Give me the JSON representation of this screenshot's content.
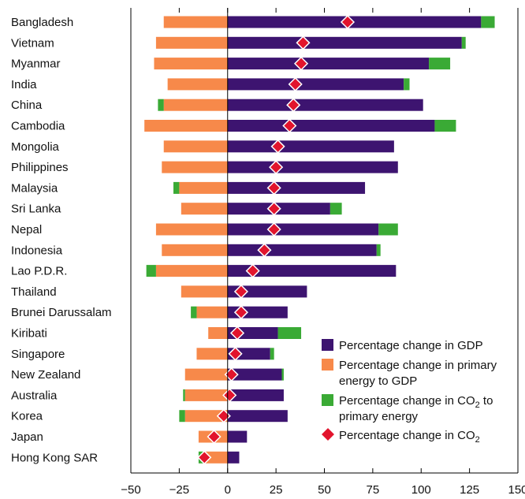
{
  "chart_data": {
    "type": "bar",
    "orientation": "horizontal",
    "stacked": true,
    "categories": [
      "Bangladesh",
      "Vietnam",
      "Myanmar",
      "India",
      "China",
      "Cambodia",
      "Mongolia",
      "Philippines",
      "Malaysia",
      "Sri Lanka",
      "Nepal",
      "Indonesia",
      "Lao P.D.R.",
      "Thailand",
      "Brunei Darussalam",
      "Kiribati",
      "Singapore",
      "New Zealand",
      "Australia",
      "Korea",
      "Japan",
      "Hong Kong SAR"
    ],
    "series": [
      {
        "name": "Percentage change in GDP",
        "color": "#3d1470",
        "values": [
          131,
          121,
          104,
          91,
          101,
          107,
          86,
          88,
          71,
          53,
          78,
          77,
          87,
          41,
          31,
          26,
          22,
          28,
          29,
          31,
          10,
          6
        ]
      },
      {
        "name": "Percentage change in primary energy to GDP",
        "color": "#f7894a",
        "values": [
          -33,
          -37,
          -38,
          -31,
          -33,
          -43,
          -33,
          -34,
          -25,
          -24,
          -37,
          -34,
          -37,
          -24,
          -16,
          -10,
          -16,
          -22,
          -22,
          -22,
          -15,
          -12
        ]
      },
      {
        "name": "Percentage change in CO2 to primary energy",
        "color": "#3aaa35",
        "values": [
          7,
          2,
          11,
          3,
          -3,
          11,
          0,
          0,
          -3,
          6,
          10,
          2,
          -5,
          0,
          -3,
          12,
          2,
          1,
          -1,
          -3,
          0,
          -3
        ]
      }
    ],
    "co2_change": {
      "name": "Percentage change in CO2",
      "color": "#e2142d",
      "values": [
        62,
        39,
        38,
        35,
        34,
        32,
        26,
        25,
        24,
        24,
        24,
        19,
        13,
        7,
        7,
        5,
        4,
        2,
        1,
        -2,
        -7,
        -12
      ]
    },
    "xlim": [
      -50,
      150
    ],
    "xticks": [
      "−50",
      "−25",
      "0",
      "25",
      "50",
      "75",
      "100",
      "125",
      "150"
    ],
    "xtick_values": [
      -50,
      -25,
      0,
      25,
      50,
      75,
      100,
      125,
      150
    ],
    "grid": false,
    "legend_position": "bottom-right"
  },
  "legend": {
    "gdp": "Percentage change in GDP",
    "energy_line1": "Percentage change in primary",
    "energy_line2": "energy to GDP",
    "co2_energy_line1": "Percentage change in CO",
    "co2_energy_sub": "2",
    "co2_energy_line1_tail": " to",
    "co2_energy_line2": "primary energy",
    "co2_line1": "Percentage change in CO",
    "co2_sub": "2"
  }
}
